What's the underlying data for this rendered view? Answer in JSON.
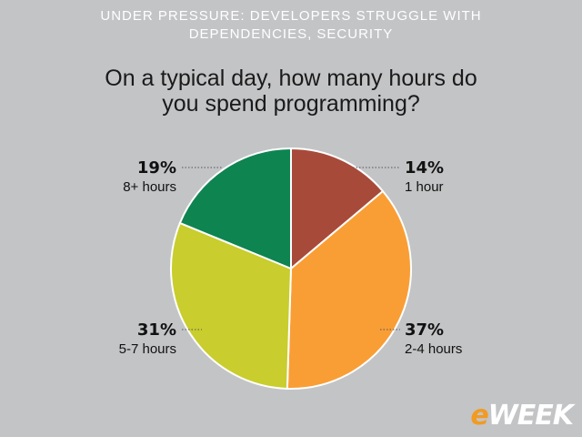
{
  "header": {
    "title_line1": "UNDER PRESSURE: DEVELOPERS STRUGGLE WITH",
    "title_line2": "DEPENDENCIES, SECURITY"
  },
  "brand": {
    "prefix": "e",
    "name": "WEEK",
    "prefix_color": "#f29a21"
  },
  "chart_data": {
    "type": "pie",
    "title": "On a typical day, how many hours do you spend programming?",
    "title_line1": "On a typical day, how many hours do",
    "title_line2": "you spend programming?",
    "unit": "%",
    "slices": [
      {
        "label": "1 hour",
        "value": 14,
        "value_label": "14%",
        "color": "#a84a3a"
      },
      {
        "label": "2-4 hours",
        "value": 37,
        "value_label": "37%",
        "color": "#f99e35"
      },
      {
        "label": "5-7 hours",
        "value": 31,
        "value_label": "31%",
        "color": "#c9cd2d"
      },
      {
        "label": "8+ hours",
        "value": 19,
        "value_label": "19%",
        "color": "#0e8451"
      }
    ]
  }
}
